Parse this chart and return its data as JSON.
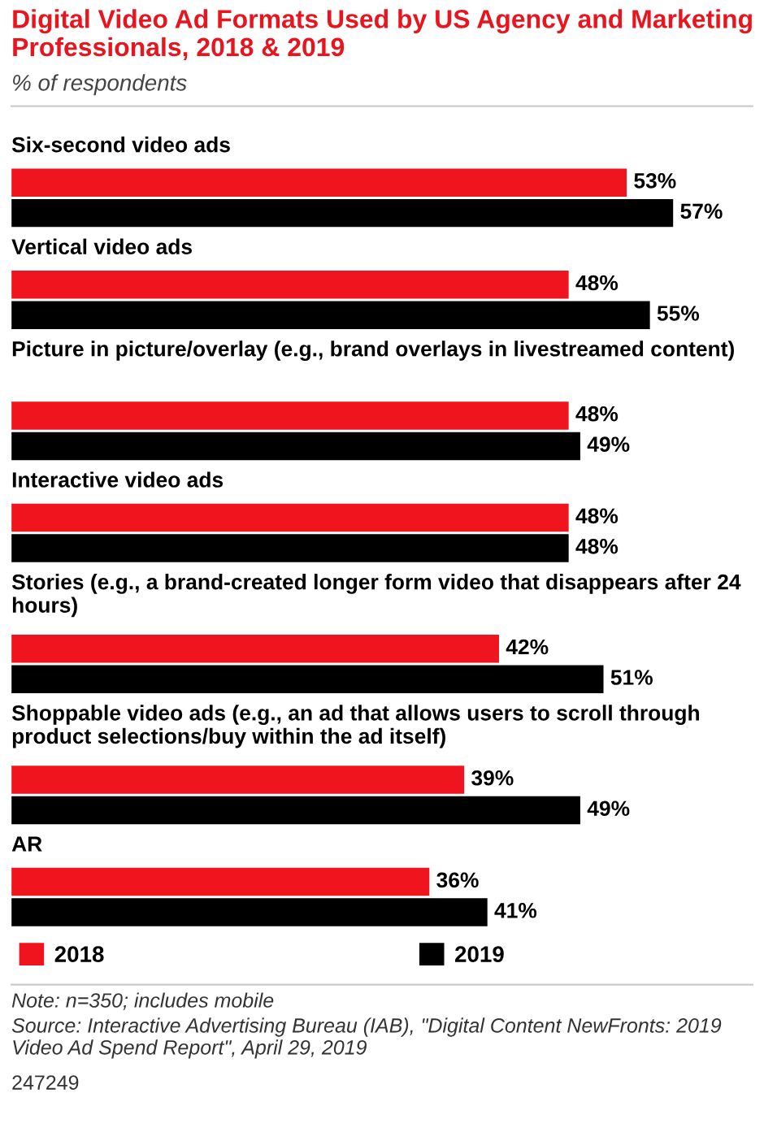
{
  "chart_data": {
    "type": "bar",
    "orientation": "horizontal",
    "title": "Digital Video Ad Formats Used by US Agency and Marketing Professionals, 2018 & 2019",
    "subtitle": "% of respondents",
    "categories": [
      "Six-second video ads",
      "Vertical video ads",
      "Picture in picture/overlay (e.g., brand overlays in livestreamed content)",
      "Interactive video ads",
      "Stories (e.g., a brand-created longer form video that disappears after 24 hours)",
      "Shoppable video ads (e.g., an ad that allows users to scroll through product selections/buy within the ad itself)",
      "AR"
    ],
    "series": [
      {
        "name": "2018",
        "color": "#f0141e",
        "values": [
          53,
          48,
          48,
          48,
          42,
          39,
          36
        ],
        "value_labels": [
          "53%",
          "48%",
          "48%",
          "48%",
          "42%",
          "39%",
          "36%"
        ]
      },
      {
        "name": "2019",
        "color": "#000000",
        "values": [
          57,
          55,
          49,
          48,
          51,
          49,
          41
        ],
        "value_labels": [
          "57%",
          "55%",
          "49%",
          "48%",
          "51%",
          "49%",
          "41%"
        ]
      }
    ],
    "legend": "bottom",
    "annotations": [
      "Note: n=350; includes mobile",
      "Source: Interactive Advertising Bureau (IAB), \"Digital Content NewFronts: 2019 Video Ad Spend Report\", April 29, 2019",
      "247249"
    ]
  }
}
